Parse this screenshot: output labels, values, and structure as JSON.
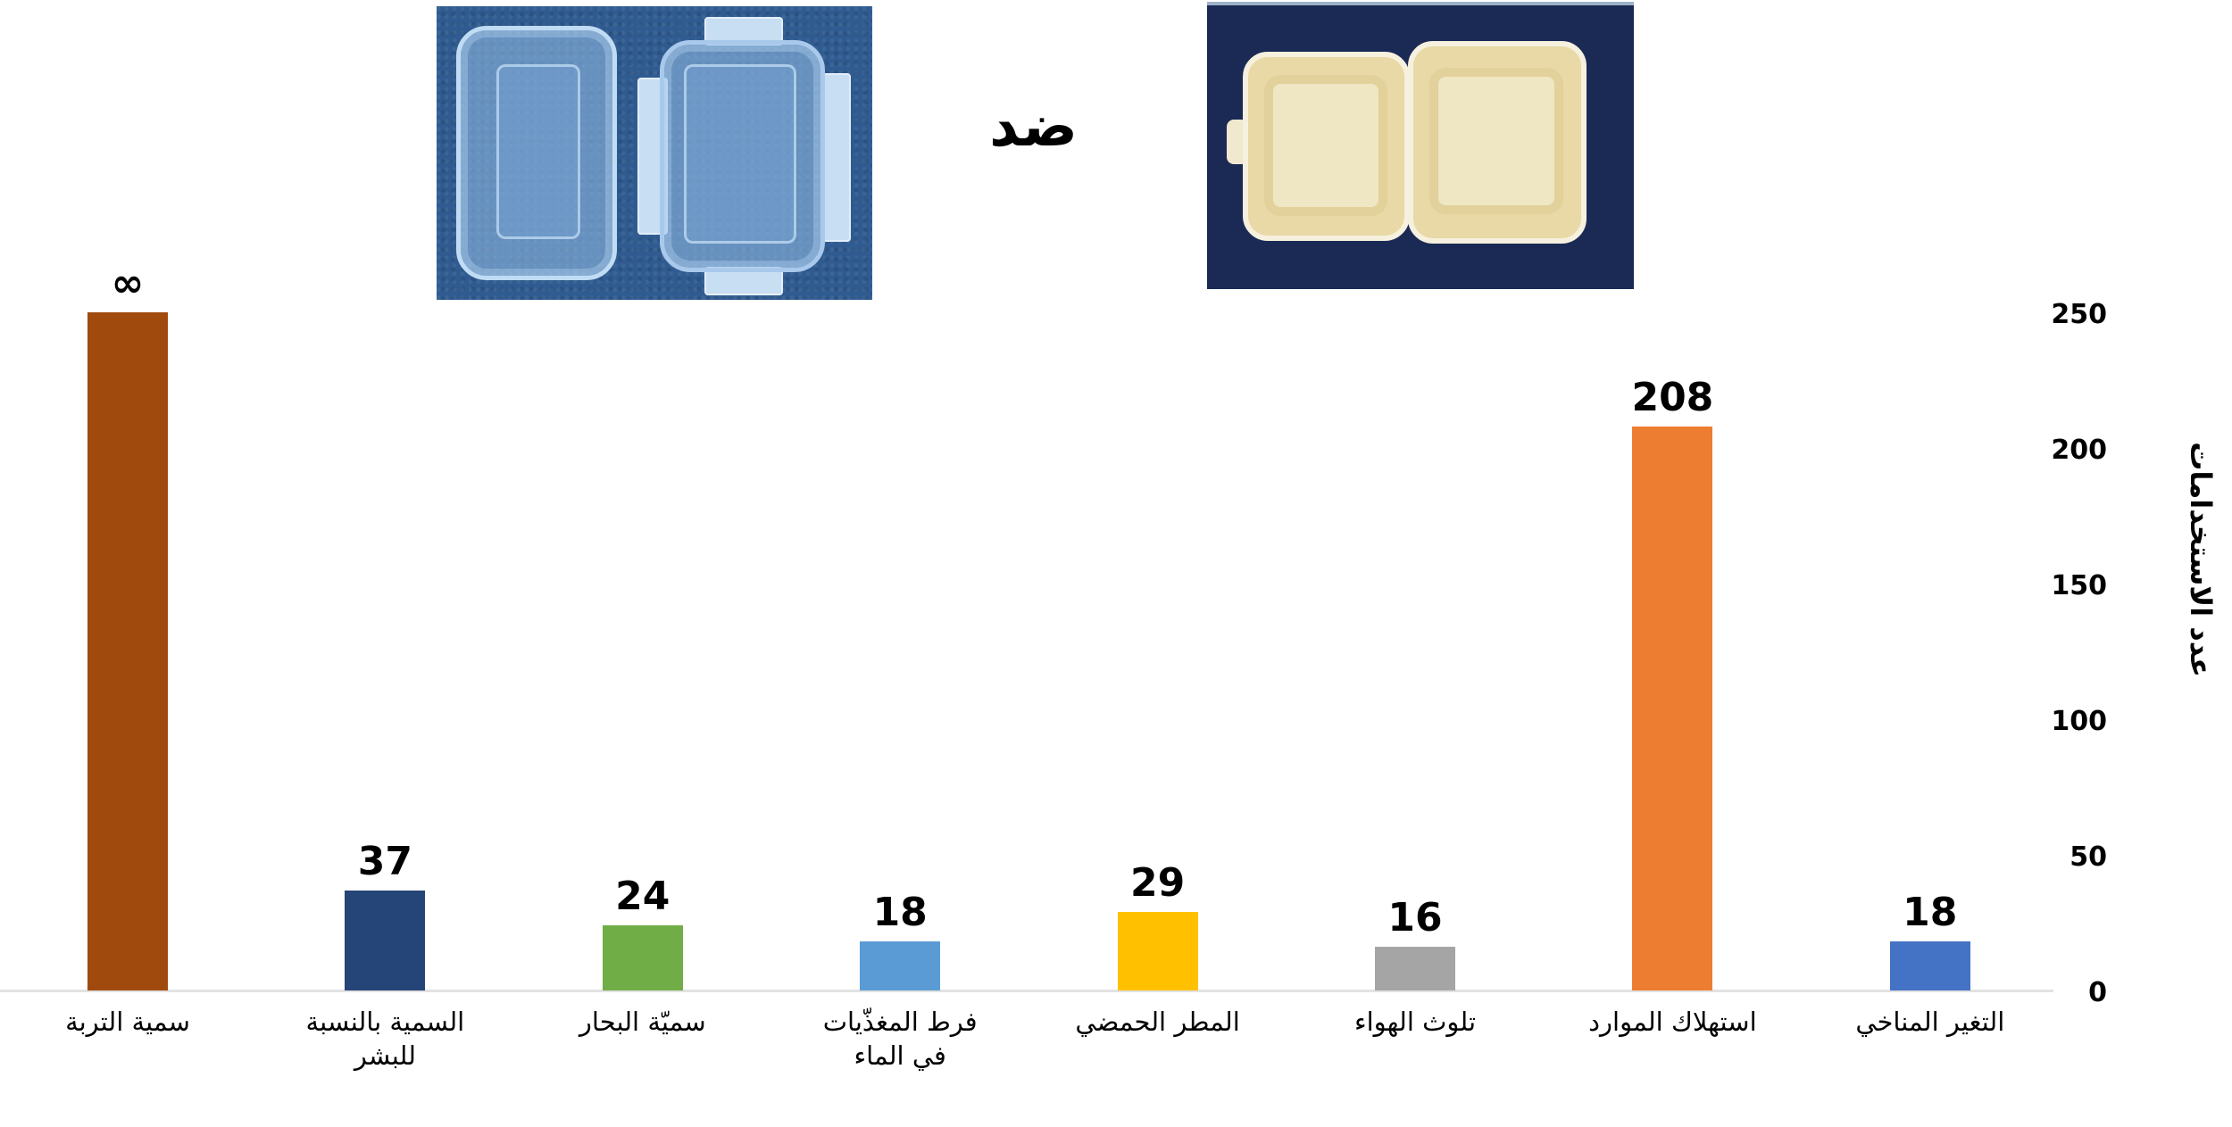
{
  "header": {
    "versus_label": "ضد",
    "left_image": "reusable-plastic-containers",
    "right_image": "styrofoam-food-box"
  },
  "colors": {
    "soil_toxicity": "#A04A0E",
    "human_toxicity": "#254478",
    "marine_toxicity": "#70AD47",
    "freshwater_eutrophication": "#5B9BD5",
    "acid_rain": "#FFC000",
    "air_pollution": "#A5A5A5",
    "resource_depletion": "#ED7D31",
    "climate_change": "#4472C4",
    "axis_line": "#E2E2E2"
  },
  "chart_data": {
    "type": "bar",
    "title": "",
    "xlabel": "",
    "ylabel": "عدد الاستخدامات",
    "ylim": [
      0,
      250
    ],
    "yticks": [
      "0",
      "50",
      "100",
      "150",
      "200",
      "250"
    ],
    "grid": false,
    "legend": null,
    "categories": [
      "سمية التربة",
      "السمية بالنسبة للبشر",
      "سميّة البحار",
      "فرط المغذّيات في الماء",
      "المطر الحمضي",
      "تلوث الهواء",
      "استهلاك الموارد",
      "التغير المناخي"
    ],
    "values": [
      "∞",
      37,
      24,
      18,
      29,
      16,
      208,
      18
    ],
    "value_labels": [
      "∞",
      "37",
      "24",
      "18",
      "29",
      "16",
      "208",
      "18"
    ],
    "note": "First bar (soil toxicity) is infinite; drawn to top of axis (250)."
  },
  "bars": [
    {
      "label_line1": "سمية التربة",
      "label_line2": "",
      "value_label": "∞",
      "value": 250
    },
    {
      "label_line1": "السمية بالنسبة",
      "label_line2": "للبشر",
      "value_label": "37",
      "value": 37
    },
    {
      "label_line1": "سميّة البحار",
      "label_line2": "",
      "value_label": "24",
      "value": 24
    },
    {
      "label_line1": "فرط المغذّيات",
      "label_line2": "في الماء",
      "value_label": "18",
      "value": 18
    },
    {
      "label_line1": "المطر الحمضي",
      "label_line2": "",
      "value_label": "29",
      "value": 29
    },
    {
      "label_line1": "تلوث الهواء",
      "label_line2": "",
      "value_label": "16",
      "value": 16
    },
    {
      "label_line1": "استهلاك الموارد",
      "label_line2": "",
      "value_label": "208",
      "value": 208
    },
    {
      "label_line1": "التغير المناخي",
      "label_line2": "",
      "value_label": "18",
      "value": 18
    }
  ],
  "y_axis": {
    "title": "عدد الاستخدامات",
    "ticks": [
      "250",
      "200",
      "150",
      "100",
      "50",
      "0"
    ]
  }
}
